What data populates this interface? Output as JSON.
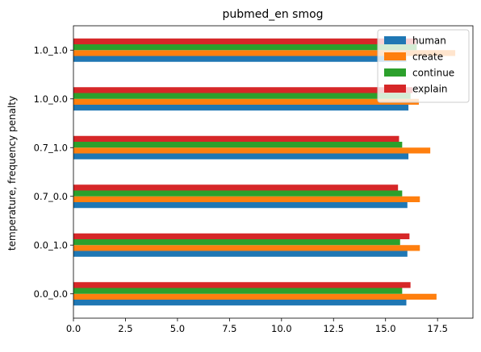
{
  "chart_data": {
    "type": "bar",
    "orientation": "horizontal",
    "title": "pubmed_en smog",
    "xlabel": "",
    "ylabel": "temperature, frequency penalty",
    "categories": [
      "0.0_0.0",
      "0.0_1.0",
      "0.7_0.0",
      "0.7_1.0",
      "1.0_0.0",
      "1.0_1.0"
    ],
    "series": [
      {
        "name": "human",
        "color": "#1f77b4",
        "values": [
          16.0,
          16.05,
          16.05,
          16.1,
          16.1,
          16.0
        ]
      },
      {
        "name": "create",
        "color": "#ff7f0e",
        "values": [
          17.45,
          16.65,
          16.65,
          17.15,
          16.6,
          18.35
        ]
      },
      {
        "name": "continue",
        "color": "#2ca02c",
        "values": [
          15.8,
          15.7,
          15.8,
          15.8,
          16.2,
          16.5
        ]
      },
      {
        "name": "explain",
        "color": "#d62728",
        "values": [
          16.2,
          16.15,
          15.6,
          15.65,
          16.3,
          16.45
        ]
      }
    ],
    "xlim": [
      0,
      19.2
    ],
    "xticks": [
      0.0,
      2.5,
      5.0,
      7.5,
      10.0,
      12.5,
      15.0,
      17.5
    ],
    "xtick_labels": [
      "0.0",
      "2.5",
      "5.0",
      "7.5",
      "10.0",
      "12.5",
      "15.0",
      "17.5"
    ],
    "grid": false,
    "legend_position": "top-right"
  }
}
